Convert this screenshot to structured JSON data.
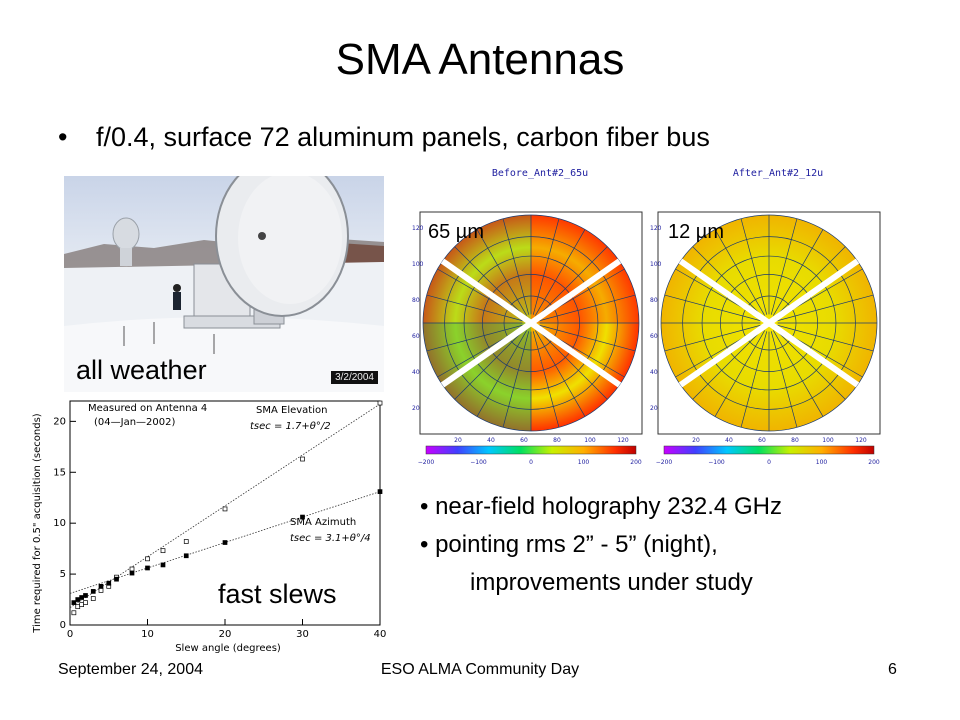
{
  "slide": {
    "title": "SMA Antennas",
    "main_bullet": {
      "marker": "•",
      "text": "f/0.4, surface 72 aluminum panels, carbon fiber bus"
    },
    "photo": {
      "date_stamp": "3/2/2004",
      "caption": "all weather"
    },
    "slew_plot": {
      "caption": "fast slews",
      "legend_title_line1": "Measured on Antenna 4",
      "legend_title_line2": "(04—Jan—2002)",
      "elevation_label": "SMA Elevation",
      "elevation_formula": "tsec = 1.7+θ°/2",
      "azimuth_label": "SMA Azimuth",
      "azimuth_formula": "tsec = 3.1+θ°/4",
      "xlabel": "Slew angle (degrees)",
      "ylabel": "Time required for 0.5\" acquisition (seconds)"
    },
    "holography": {
      "before_label": "Before_Ant#2_65u",
      "after_label": "After_Ant#2_12u",
      "before_rms": "65 µm",
      "after_rms": "12 µm",
      "y_ticks": [
        "120",
        "100",
        "80",
        "60",
        "40",
        "20"
      ],
      "x_ticks": [
        "20",
        "40",
        "60",
        "80",
        "100",
        "120"
      ],
      "colorbar_ticks": [
        "−200",
        "−100",
        "0",
        "100",
        "200"
      ]
    },
    "notes": {
      "line1": "• near-field holography 232.4 GHz",
      "line2": "• pointing rms 2” - 5” (night),",
      "line3": "improvements under study"
    },
    "footer": {
      "date": "September 24, 2004",
      "event": "ESO ALMA Community Day",
      "page": "6"
    }
  },
  "chart_data": {
    "type": "scatter",
    "title": "",
    "xlabel": "Slew angle (degrees)",
    "ylabel": "Time required for 0.5\" acquisition (seconds)",
    "xlim": [
      0,
      40
    ],
    "ylim": [
      0,
      22
    ],
    "x_ticks": [
      0,
      10,
      20,
      30,
      40
    ],
    "y_ticks": [
      0,
      5,
      10,
      15,
      20
    ],
    "grid": false,
    "series": [
      {
        "name": "SMA Elevation",
        "marker": "open-square",
        "fit": {
          "intercept": 1.7,
          "slope": 0.5
        },
        "points": [
          [
            0.5,
            1.2
          ],
          [
            1,
            1.8
          ],
          [
            1.5,
            2.0
          ],
          [
            2,
            2.2
          ],
          [
            3,
            2.6
          ],
          [
            4,
            3.4
          ],
          [
            5,
            3.8
          ],
          [
            6,
            4.7
          ],
          [
            8,
            5.5
          ],
          [
            10,
            6.5
          ],
          [
            12,
            7.3
          ],
          [
            15,
            8.2
          ],
          [
            20,
            11.4
          ],
          [
            30,
            16.3
          ],
          [
            40,
            21.8
          ]
        ]
      },
      {
        "name": "SMA Azimuth",
        "marker": "filled-square",
        "fit": {
          "intercept": 3.1,
          "slope": 0.25
        },
        "points": [
          [
            0.5,
            2.2
          ],
          [
            1,
            2.5
          ],
          [
            1.5,
            2.7
          ],
          [
            2,
            2.9
          ],
          [
            3,
            3.3
          ],
          [
            4,
            3.8
          ],
          [
            5,
            4.1
          ],
          [
            6,
            4.5
          ],
          [
            8,
            5.1
          ],
          [
            10,
            5.6
          ],
          [
            12,
            5.9
          ],
          [
            15,
            6.8
          ],
          [
            20,
            8.1
          ],
          [
            30,
            10.6
          ],
          [
            40,
            13.1
          ]
        ]
      }
    ]
  }
}
